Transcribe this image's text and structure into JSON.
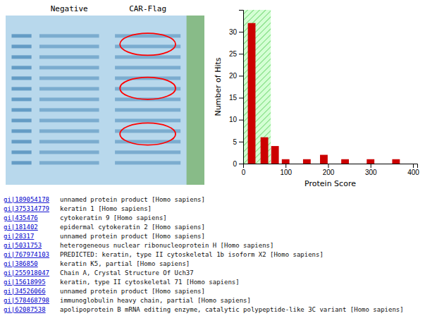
{
  "chart_data": [
    {
      "type": "gel",
      "categories": [
        "Negative",
        "CAR-Flag"
      ]
    },
    {
      "type": "bar",
      "xlabel": "Protein Score",
      "ylabel": "Number of Hits",
      "x": [
        20,
        50,
        75,
        100,
        150,
        190,
        240,
        300,
        360
      ],
      "values": [
        32,
        6,
        4,
        1,
        1,
        2,
        1,
        1,
        1
      ],
      "color": "#cc0000",
      "highlight_x": [
        0,
        65
      ],
      "xlim": [
        0,
        410
      ],
      "ylim": [
        0,
        35
      ],
      "xticks": [
        0,
        100,
        200,
        300,
        400
      ],
      "yticks": [
        0,
        5,
        10,
        15,
        20,
        25,
        30
      ]
    },
    {
      "type": "table",
      "rows": [
        [
          "gi|189054178",
          "unnamed protein product [Homo sapiens]"
        ],
        [
          "gi|375314779",
          "keratin 1 [Homo sapiens]"
        ],
        [
          "gi|435476",
          "cytokeratin 9 [Homo sapiens]"
        ],
        [
          "gi|181402",
          "epidermal cytokeratin 2 [Homo sapiens]"
        ],
        [
          "gi|28317",
          "unnamed protein product [Homo sapiens]"
        ],
        [
          "gi|5031753",
          "heterogeneous nuclear ribonucleoprotein H [Homo sapiens]"
        ],
        [
          "gi|767974103",
          "PREDICTED: keratin, type II cytoskeletal 1b isoform X2 [Homo sapiens]"
        ],
        [
          "gi|386850",
          "keratin K5, partial [Homo sapiens]"
        ],
        [
          "gi|255918047",
          "Chain A, Crystal Structure Of Uch37"
        ],
        [
          "gi|15618995",
          "keratin, type II cytoskeletal 71 [Homo sapiens]"
        ],
        [
          "gi|34526066",
          "unnamed protein product [Homo sapiens]"
        ],
        [
          "gi|578468798",
          "immunoglobulin heavy chain, partial [Homo sapiens]"
        ],
        [
          "gi|62087538",
          "apolipoprotein B mRNA editing enzyme, catalytic polypeptide-like 3C variant [Homo sapiens]"
        ]
      ]
    }
  ]
}
